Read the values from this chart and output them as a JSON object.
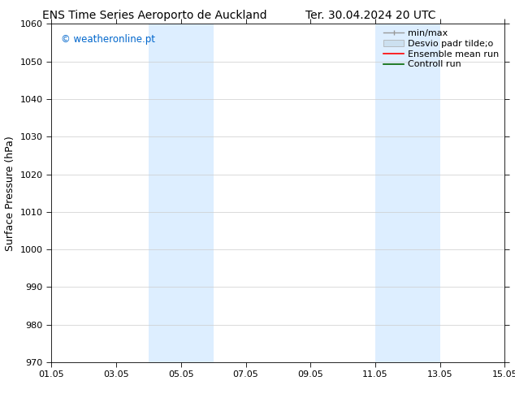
{
  "title_left": "ENS Time Series Aeroporto de Auckland",
  "title_right": "Ter. 30.04.2024 20 UTC",
  "ylabel": "Surface Pressure (hPa)",
  "ylim": [
    970,
    1060
  ],
  "yticks": [
    970,
    980,
    990,
    1000,
    1010,
    1020,
    1030,
    1040,
    1050,
    1060
  ],
  "xlim_start": 0,
  "xlim_end": 14,
  "xtick_labels": [
    "01.05",
    "03.05",
    "05.05",
    "07.05",
    "09.05",
    "11.05",
    "13.05",
    "15.05"
  ],
  "xtick_positions": [
    0,
    2,
    4,
    6,
    8,
    10,
    12,
    14
  ],
  "shaded_bands": [
    {
      "x_start": 3.0,
      "x_end": 5.0
    },
    {
      "x_start": 10.0,
      "x_end": 12.0
    }
  ],
  "shaded_color": "#ddeeff",
  "watermark": "© weatheronline.pt",
  "watermark_color": "#0066cc",
  "background_color": "#ffffff",
  "grid_color": "#cccccc",
  "title_fontsize": 10,
  "tick_fontsize": 8,
  "label_fontsize": 9,
  "legend_fontsize": 8
}
